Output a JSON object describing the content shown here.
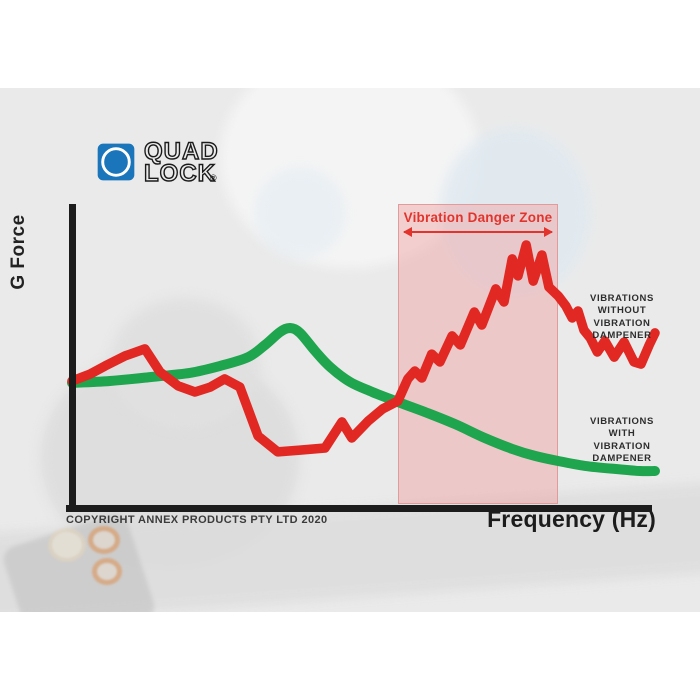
{
  "logo": {
    "brand_line1": "QUAD",
    "brand_line2": "LOCK",
    "registered_mark": "®",
    "brand_color": "#1b75bb"
  },
  "chart_data": {
    "type": "line",
    "title": "",
    "xlabel": "Frequency (Hz)",
    "ylabel": "G Force",
    "x_range": [
      0,
      100
    ],
    "y_range": [
      0,
      100
    ],
    "grid": false,
    "legend_position": "right-annotations",
    "danger_zone": {
      "label": "Vibration Danger Zone",
      "x_start": 55.9,
      "x_end": 83.4,
      "fill": "#f8d3d3",
      "accent": "#e2342c"
    },
    "series": [
      {
        "name": "VIBRATIONS WITHOUT VIBRATION DAMPENER",
        "color": "#e12823",
        "smooth": false,
        "points": [
          [
            0,
            41.9
          ],
          [
            3.1,
            44.2
          ],
          [
            5.7,
            46.9
          ],
          [
            9.1,
            50.2
          ],
          [
            12.5,
            52.5
          ],
          [
            15.1,
            44.9
          ],
          [
            18.2,
            40.3
          ],
          [
            21.1,
            38.3
          ],
          [
            23.7,
            39.9
          ],
          [
            26.2,
            42.6
          ],
          [
            28.8,
            39.9
          ],
          [
            31.9,
            23.8
          ],
          [
            35.3,
            18.5
          ],
          [
            39.1,
            19.1
          ],
          [
            43.4,
            19.8
          ],
          [
            46.3,
            28.4
          ],
          [
            48,
            23.1
          ],
          [
            50.8,
            28.7
          ],
          [
            53.3,
            32.7
          ],
          [
            55.9,
            35.3
          ],
          [
            57.6,
            42.6
          ],
          [
            58.8,
            45.2
          ],
          [
            60,
            42.9
          ],
          [
            61.7,
            50.8
          ],
          [
            63.1,
            48.2
          ],
          [
            65.2,
            56.8
          ],
          [
            66.6,
            53.8
          ],
          [
            69,
            64.7
          ],
          [
            70.3,
            60.4
          ],
          [
            72.7,
            72.3
          ],
          [
            74.1,
            68
          ],
          [
            75.5,
            82.2
          ],
          [
            76.5,
            76.6
          ],
          [
            77.9,
            86.8
          ],
          [
            79.1,
            74.9
          ],
          [
            80.6,
            83.5
          ],
          [
            81.8,
            72.9
          ],
          [
            83.4,
            70
          ],
          [
            84.7,
            66.7
          ],
          [
            85.8,
            62.7
          ],
          [
            86.8,
            65
          ],
          [
            87.8,
            58.7
          ],
          [
            88.9,
            56.1
          ],
          [
            90.1,
            51.5
          ],
          [
            91.4,
            55.1
          ],
          [
            93,
            49.8
          ],
          [
            94.7,
            54.8
          ],
          [
            96.4,
            48.2
          ],
          [
            97.6,
            47.5
          ],
          [
            99,
            53.8
          ],
          [
            100,
            57.8
          ]
        ]
      },
      {
        "name": "VIBRATIONS WITH VIBRATION DAMPENER",
        "color": "#1ea54d",
        "smooth": true,
        "points": [
          [
            0,
            41.3
          ],
          [
            6.5,
            41.9
          ],
          [
            13.4,
            43.2
          ],
          [
            20.2,
            44.6
          ],
          [
            25.4,
            46.9
          ],
          [
            30.2,
            49.8
          ],
          [
            33.1,
            53.8
          ],
          [
            35.7,
            58.1
          ],
          [
            37.4,
            59.4
          ],
          [
            39.1,
            57.8
          ],
          [
            41.7,
            51.8
          ],
          [
            44.3,
            46.5
          ],
          [
            47.7,
            41.6
          ],
          [
            51.5,
            38.3
          ],
          [
            55.9,
            35
          ],
          [
            60.5,
            31.7
          ],
          [
            65.7,
            27.7
          ],
          [
            70.8,
            23.1
          ],
          [
            75.5,
            19.5
          ],
          [
            79.4,
            17.2
          ],
          [
            83.4,
            15.5
          ],
          [
            88,
            13.9
          ],
          [
            93.1,
            12.9
          ],
          [
            97.4,
            12.2
          ],
          [
            100,
            12.2
          ]
        ]
      }
    ]
  },
  "labels": {
    "without_lines": [
      "VIBRATIONS",
      "WITHOUT",
      "VIBRATION",
      "DAMPENER"
    ],
    "with_lines": [
      "VIBRATIONS",
      "WITH",
      "VIBRATION",
      "DAMPENER"
    ]
  },
  "footer": {
    "copyright": "COPYRIGHT ANNEX PRODUCTS PTY LTD 2020"
  }
}
